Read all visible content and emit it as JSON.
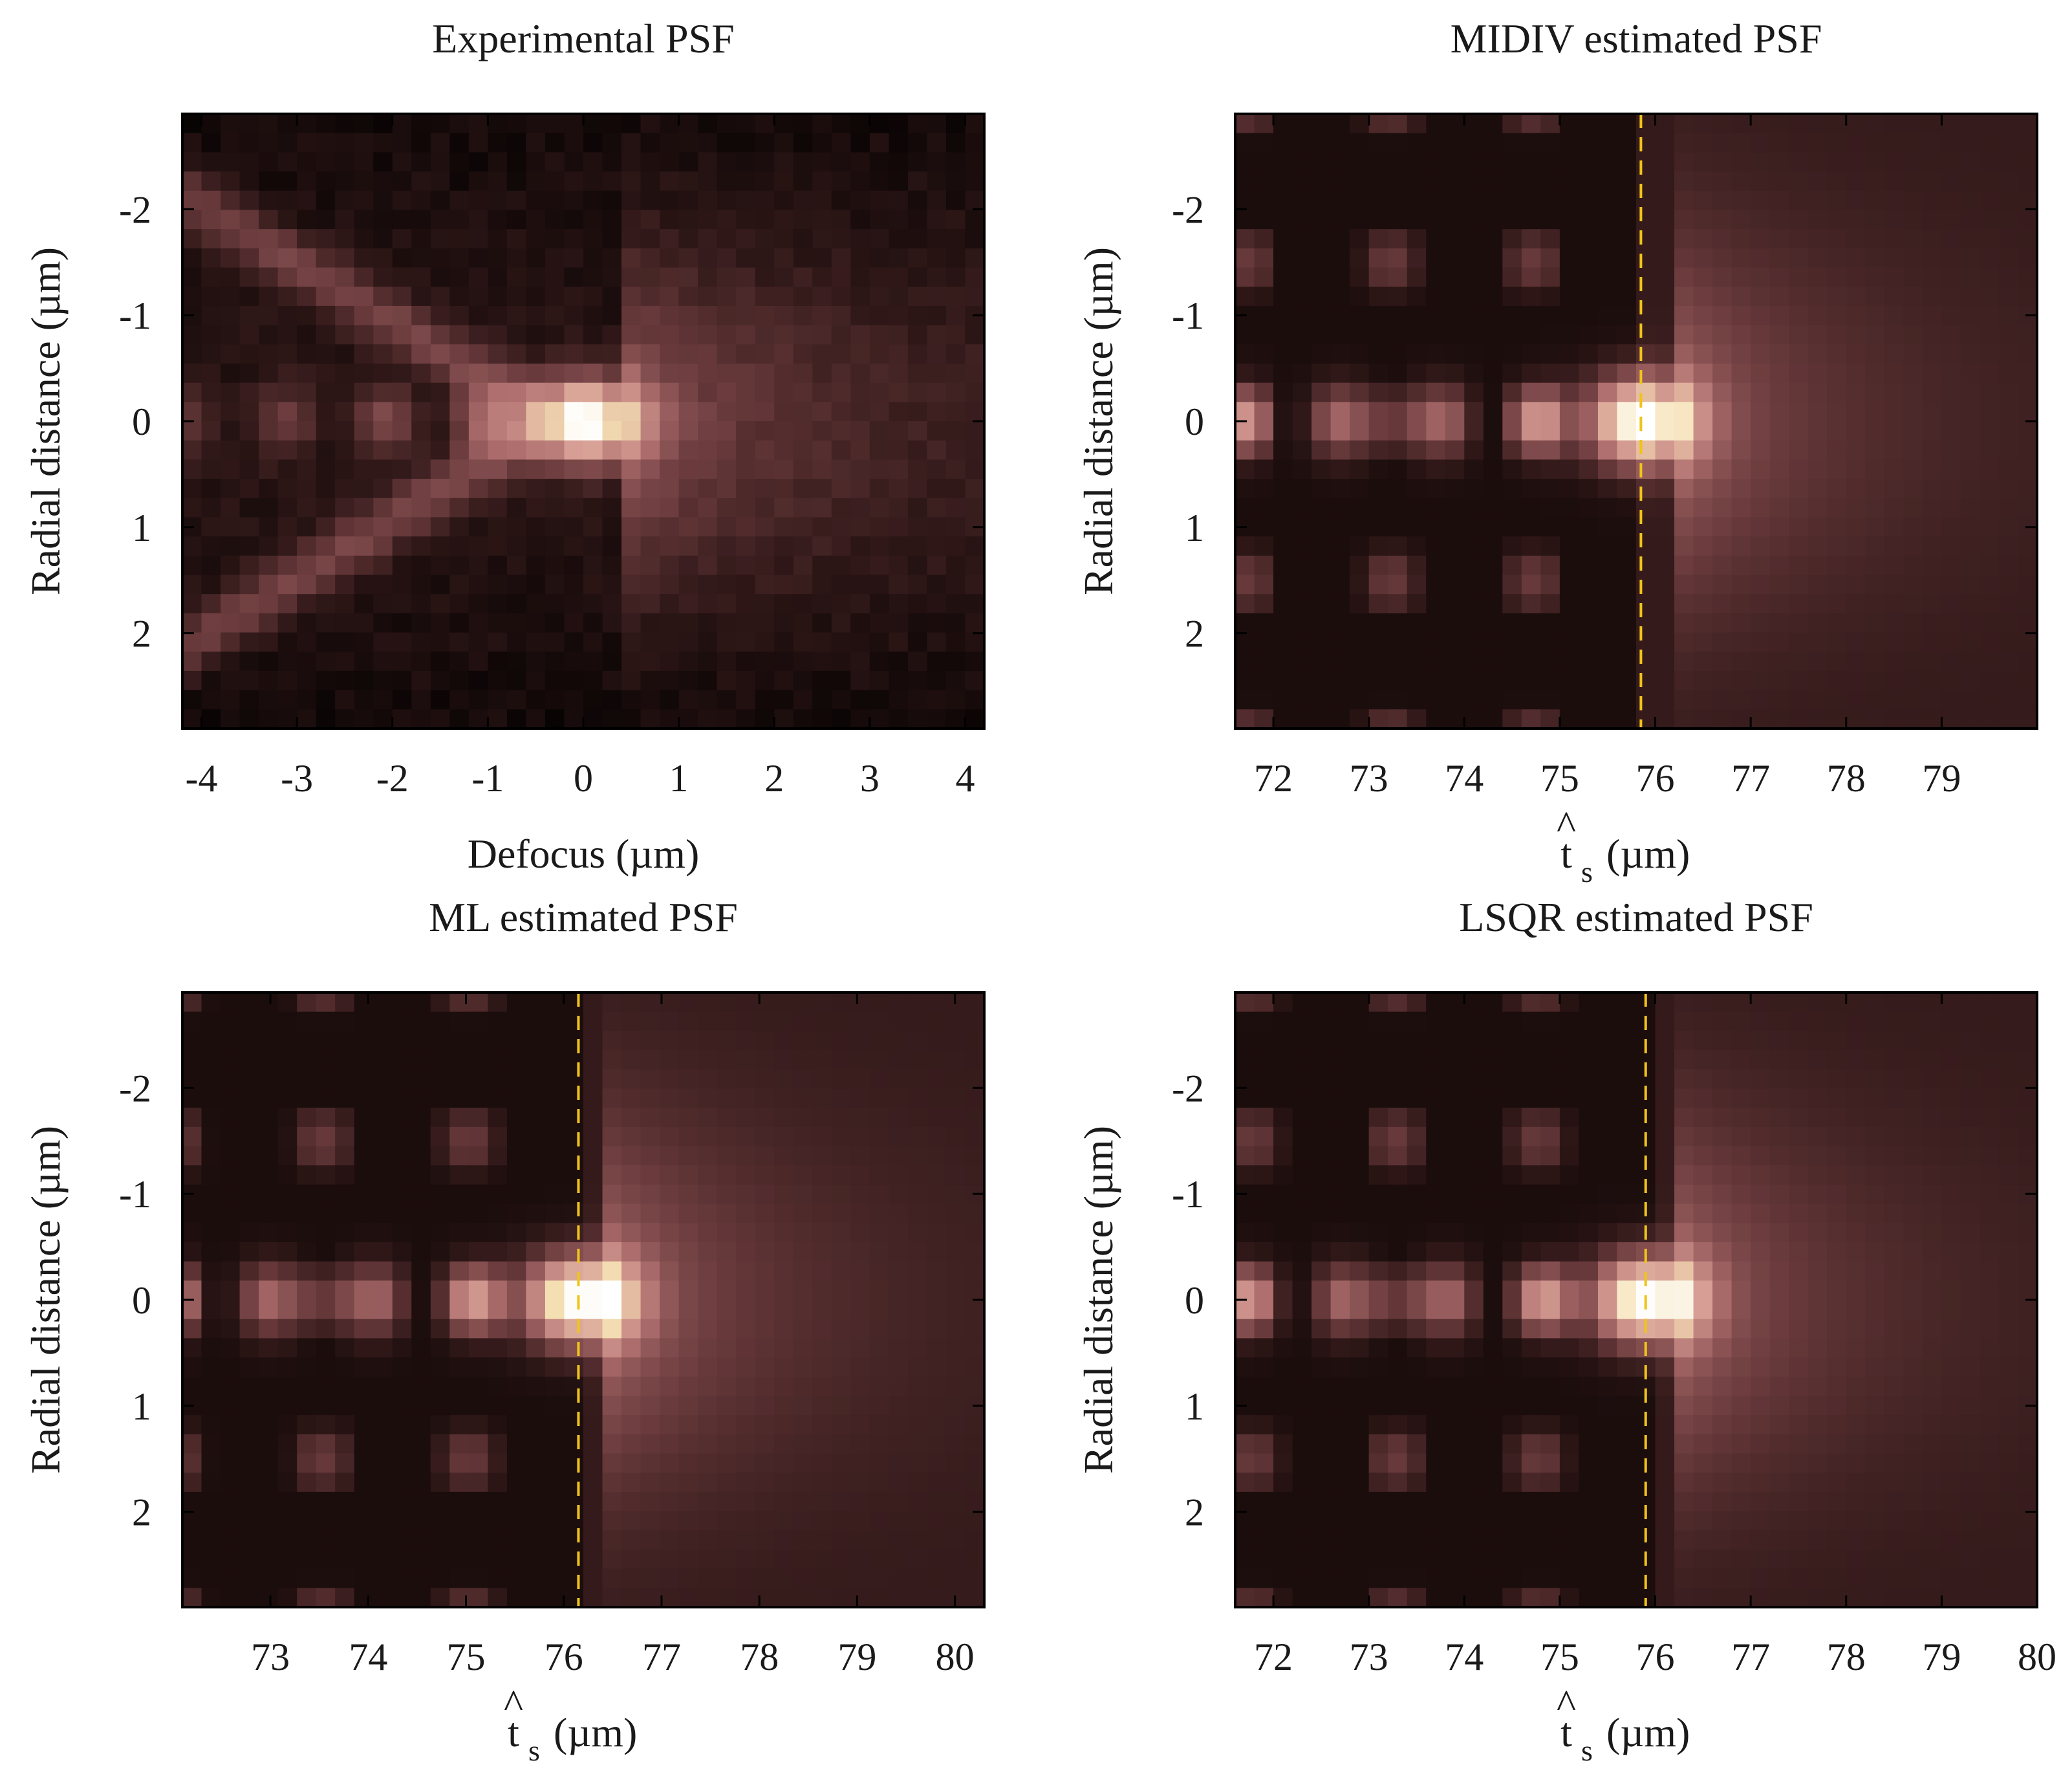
{
  "chart_data": [
    {
      "id": "experimental",
      "type": "heatmap",
      "title": "Experimental PSF",
      "xlabel": "Defocus (µm)",
      "ylabel": "Radial distance (µm)",
      "xlim": [
        -4.2,
        4.2
      ],
      "ylim": [
        -2.9,
        2.9
      ],
      "xticks": [
        -4,
        -3,
        -2,
        -1,
        0,
        1,
        2,
        3,
        4
      ],
      "yticks": [
        -2,
        -1,
        0,
        1,
        2
      ],
      "peak": {
        "x": 0.0,
        "y": 0.0
      },
      "estimate_line": null,
      "variant": "experimental"
    },
    {
      "id": "midiv",
      "type": "heatmap",
      "title": "MIDIV estimated PSF",
      "xlabel_main": "t",
      "xlabel_hat": "^",
      "xlabel_sub": "s",
      "xlabel_unit": "(µm)",
      "ylabel": "Radial distance (µm)",
      "xlim": [
        71.6,
        80.0
      ],
      "ylim": [
        -2.9,
        2.9
      ],
      "xticks": [
        72,
        73,
        74,
        75,
        76,
        77,
        78,
        79
      ],
      "yticks": [
        -2,
        -1,
        0,
        1,
        2
      ],
      "peak": {
        "x": 75.85,
        "y": 0.0
      },
      "estimate_line": 75.85,
      "variant": "model"
    },
    {
      "id": "ml",
      "type": "heatmap",
      "title": "ML estimated PSF",
      "xlabel_main": "t",
      "xlabel_hat": "^",
      "xlabel_sub": "s",
      "xlabel_unit": "(µm)",
      "ylabel": "Radial distance (µm)",
      "xlim": [
        72.1,
        80.3
      ],
      "ylim": [
        -2.9,
        2.9
      ],
      "xticks": [
        73,
        74,
        75,
        76,
        77,
        78,
        79,
        80
      ],
      "yticks": [
        -2,
        -1,
        0,
        1,
        2
      ],
      "peak": {
        "x": 76.15,
        "y": 0.0
      },
      "estimate_line": 76.15,
      "variant": "model"
    },
    {
      "id": "lsqr",
      "type": "heatmap",
      "title": "LSQR estimated PSF",
      "xlabel_main": "t",
      "xlabel_hat": "^",
      "xlabel_sub": "s",
      "xlabel_unit": "(µm)",
      "ylabel": "Radial distance (µm)",
      "xlim": [
        71.6,
        80.0
      ],
      "ylim": [
        -2.9,
        2.9
      ],
      "xticks": [
        72,
        73,
        74,
        75,
        76,
        77,
        78,
        79,
        80
      ],
      "yticks": [
        -2,
        -1,
        0,
        1,
        2
      ],
      "peak": {
        "x": 75.9,
        "y": 0.0
      },
      "estimate_line": 75.9,
      "variant": "model"
    }
  ],
  "colors": {
    "line": "#f0c419",
    "axis": "#000000",
    "background": "#ffffff"
  }
}
